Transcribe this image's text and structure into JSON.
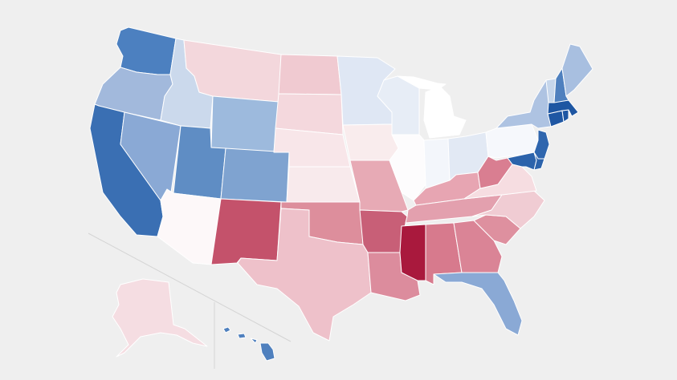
{
  "map": {
    "type": "choropleth",
    "background": "#efefef",
    "color_scale": {
      "strong_blue": "#1f57a3",
      "blue": "#3b72b6",
      "mid_blue": "#7ea3d1",
      "light_blue": "#c5d6eb",
      "neutral": "#ffffff",
      "light_red": "#f2d1d7",
      "mid_red": "#de8c9c",
      "red": "#c4526b",
      "strong_red": "#a9193d"
    },
    "states": [
      {
        "abbr": "WA",
        "color": "#4c80c0"
      },
      {
        "abbr": "OR",
        "color": "#a2b9dc"
      },
      {
        "abbr": "CA",
        "color": "#3a6fb3"
      },
      {
        "abbr": "NV",
        "color": "#8aa9d5"
      },
      {
        "abbr": "ID",
        "color": "#cbd9ec"
      },
      {
        "abbr": "MT",
        "color": "#f3d7dc"
      },
      {
        "abbr": "WY",
        "color": "#9dbadd"
      },
      {
        "abbr": "UT",
        "color": "#5f8dc4"
      },
      {
        "abbr": "AZ",
        "color": "#fdf8f9"
      },
      {
        "abbr": "CO",
        "color": "#7fa3d0"
      },
      {
        "abbr": "NM",
        "color": "#c4526b"
      },
      {
        "abbr": "ND",
        "color": "#f0cad1"
      },
      {
        "abbr": "SD",
        "color": "#f4d8dd"
      },
      {
        "abbr": "NE",
        "color": "#f8e6e9"
      },
      {
        "abbr": "KS",
        "color": "#f8eaec"
      },
      {
        "abbr": "OK",
        "color": "#dd8e9c"
      },
      {
        "abbr": "TX",
        "color": "#eec1ca"
      },
      {
        "abbr": "MN",
        "color": "#dfe7f4"
      },
      {
        "abbr": "IA",
        "color": "#f9eced"
      },
      {
        "abbr": "MO",
        "color": "#e7aab5"
      },
      {
        "abbr": "AR",
        "color": "#c85f77"
      },
      {
        "abbr": "LA",
        "color": "#dc8c9d"
      },
      {
        "abbr": "WI",
        "color": "#e7edf6"
      },
      {
        "abbr": "IL",
        "color": "#fdfcfd"
      },
      {
        "abbr": "MI",
        "color": "#ffffff"
      },
      {
        "abbr": "IN",
        "color": "#f3f6fb"
      },
      {
        "abbr": "OH",
        "color": "#e2e9f4"
      },
      {
        "abbr": "KY",
        "color": "#e7a5b2"
      },
      {
        "abbr": "TN",
        "color": "#e3a0ae"
      },
      {
        "abbr": "MS",
        "color": "#a9193d"
      },
      {
        "abbr": "AL",
        "color": "#d77a8d"
      },
      {
        "abbr": "GA",
        "color": "#da8496"
      },
      {
        "abbr": "FL",
        "color": "#8aa9d5"
      },
      {
        "abbr": "SC",
        "color": "#de909f"
      },
      {
        "abbr": "NC",
        "color": "#f0ccd3"
      },
      {
        "abbr": "VA",
        "color": "#f6dde1"
      },
      {
        "abbr": "WV",
        "color": "#d97e91"
      },
      {
        "abbr": "PA",
        "color": "#f6f8fc"
      },
      {
        "abbr": "NY",
        "color": "#aec3e2"
      },
      {
        "abbr": "MD",
        "color": "#2c63ab"
      },
      {
        "abbr": "DE",
        "color": "#2c63ab"
      },
      {
        "abbr": "NJ",
        "color": "#2f66ae"
      },
      {
        "abbr": "CT",
        "color": "#1f57a3"
      },
      {
        "abbr": "RI",
        "color": "#1f57a3"
      },
      {
        "abbr": "MA",
        "color": "#1e56a2"
      },
      {
        "abbr": "VT",
        "color": "#c6d6eb"
      },
      {
        "abbr": "NH",
        "color": "#4f80be"
      },
      {
        "abbr": "ME",
        "color": "#a8bfe0"
      },
      {
        "abbr": "AK",
        "color": "#f5dde2"
      },
      {
        "abbr": "HI",
        "color": "#4f80be"
      }
    ]
  }
}
